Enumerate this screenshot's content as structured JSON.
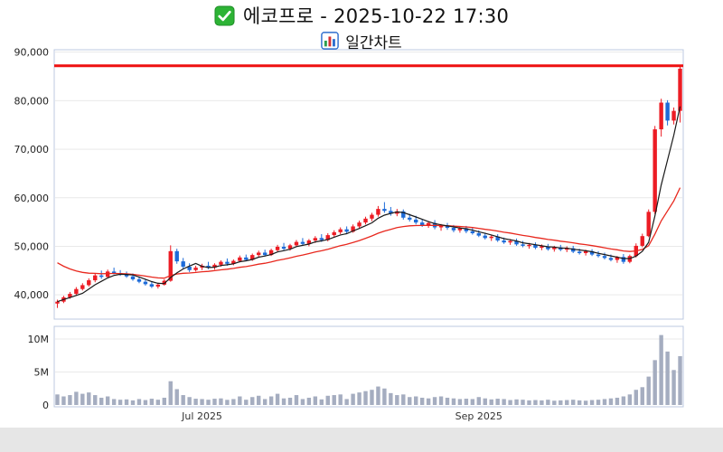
{
  "header": {
    "title": "에코프로 - 2025-10-22 17:30",
    "subtitle": "일간차트",
    "title_icon": "green-checkbox",
    "subtitle_icon": "bar-chart"
  },
  "chart_data": {
    "type": "candlestick",
    "title": "에코프로 - 2025-10-22 17:30",
    "subtitle": "일간차트",
    "symbol": "에코프로",
    "timestamp": "2025-10-22 17:30",
    "y_axis": {
      "min": 35000,
      "max": 90500,
      "tick_values": [
        40000,
        50000,
        60000,
        70000,
        80000,
        90000
      ],
      "tick_labels": [
        "40,000",
        "50,000",
        "60,000",
        "70,000",
        "80,000",
        "90,000"
      ]
    },
    "volume_axis": {
      "tick_values": [
        0,
        5000000,
        10000000
      ],
      "tick_labels": [
        "0",
        "5M",
        "10M"
      ]
    },
    "x_ticks": [
      {
        "label": "Jul 2025",
        "index": 23
      },
      {
        "label": "Sep 2025",
        "index": 67
      }
    ],
    "reference_line": {
      "value": 87200,
      "color": "#ee1111"
    },
    "moving_averages": {
      "fast_window": 5,
      "slow_alpha": 0.1,
      "slow_seed": 47500
    },
    "colors": {
      "up": "#ec1c24",
      "down": "#1d6bd8",
      "ma_fast": "#1a1a1a",
      "ma_slow": "#e8281e",
      "volume": "#a5adc0",
      "grid": "#e9e9e9",
      "panel_border": "#bcc9e0",
      "axis_text": "#222222",
      "x_label_text": "#333333"
    },
    "candle_format": [
      "open",
      "high",
      "low",
      "close",
      "volume"
    ],
    "candles": [
      [
        38200,
        39000,
        37300,
        38600,
        1600000
      ],
      [
        38600,
        39800,
        38300,
        39500,
        1300000
      ],
      [
        39500,
        40600,
        39200,
        40200,
        1500000
      ],
      [
        40200,
        41600,
        39900,
        41200,
        2000000
      ],
      [
        41200,
        42400,
        40900,
        42000,
        1700000
      ],
      [
        42000,
        43400,
        41700,
        43000,
        1900000
      ],
      [
        43000,
        44400,
        42600,
        44000,
        1500000
      ],
      [
        44000,
        45000,
        43300,
        43700,
        1100000
      ],
      [
        43700,
        45200,
        43500,
        44800,
        1300000
      ],
      [
        44800,
        45600,
        44200,
        44500,
        900000
      ],
      [
        44500,
        45100,
        43900,
        44200,
        800000
      ],
      [
        44200,
        44800,
        43500,
        43800,
        850000
      ],
      [
        43800,
        44400,
        42900,
        43200,
        700000
      ],
      [
        43200,
        43800,
        42400,
        42700,
        900000
      ],
      [
        42700,
        43300,
        41900,
        42200,
        750000
      ],
      [
        42200,
        42800,
        41400,
        41700,
        950000
      ],
      [
        41700,
        42500,
        41300,
        42100,
        800000
      ],
      [
        42100,
        43200,
        41900,
        42900,
        1100000
      ],
      [
        42900,
        50200,
        42700,
        49000,
        3600000
      ],
      [
        49000,
        49500,
        46400,
        46900,
        2400000
      ],
      [
        46900,
        47600,
        45400,
        45800,
        1500000
      ],
      [
        45800,
        46500,
        44700,
        45100,
        1200000
      ],
      [
        45100,
        46000,
        44800,
        45600,
        950000
      ],
      [
        45600,
        46400,
        45100,
        46000,
        900000
      ],
      [
        46000,
        46800,
        45300,
        45600,
        800000
      ],
      [
        45600,
        46500,
        45200,
        46200,
        950000
      ],
      [
        46200,
        47100,
        45800,
        46800,
        1000000
      ],
      [
        46800,
        47500,
        46000,
        46400,
        780000
      ],
      [
        46400,
        47300,
        46100,
        47000,
        900000
      ],
      [
        47000,
        48100,
        46700,
        47700,
        1300000
      ],
      [
        47700,
        48300,
        46900,
        47200,
        800000
      ],
      [
        47200,
        48500,
        47000,
        48200,
        1200000
      ],
      [
        48200,
        49100,
        47700,
        48700,
        1400000
      ],
      [
        48700,
        49300,
        47900,
        48200,
        900000
      ],
      [
        48200,
        49500,
        48000,
        49200,
        1300000
      ],
      [
        49200,
        50300,
        48900,
        49900,
        1700000
      ],
      [
        49900,
        50700,
        49200,
        49500,
        1000000
      ],
      [
        49500,
        50500,
        49100,
        50200,
        1100000
      ],
      [
        50200,
        51300,
        49900,
        50900,
        1500000
      ],
      [
        50900,
        51700,
        50100,
        50500,
        900000
      ],
      [
        50500,
        51500,
        50000,
        51200,
        1100000
      ],
      [
        51200,
        52100,
        50700,
        51700,
        1300000
      ],
      [
        51700,
        52500,
        50900,
        51300,
        850000
      ],
      [
        51300,
        52700,
        51000,
        52300,
        1400000
      ],
      [
        52300,
        53300,
        51900,
        52900,
        1500000
      ],
      [
        52900,
        53900,
        52500,
        53500,
        1600000
      ],
      [
        53500,
        54100,
        52600,
        53000,
        900000
      ],
      [
        53000,
        54500,
        52800,
        54100,
        1700000
      ],
      [
        54100,
        55300,
        53700,
        54900,
        1900000
      ],
      [
        54900,
        56100,
        54500,
        55700,
        2100000
      ],
      [
        55700,
        56900,
        55200,
        56500,
        2300000
      ],
      [
        56500,
        58300,
        56100,
        57700,
        2800000
      ],
      [
        57700,
        59100,
        56900,
        57300,
        2500000
      ],
      [
        57300,
        58100,
        56300,
        56700,
        1800000
      ],
      [
        56700,
        57700,
        56200,
        57200,
        1500000
      ],
      [
        57200,
        57600,
        55500,
        55900,
        1600000
      ],
      [
        55900,
        56700,
        55100,
        55500,
        1200000
      ],
      [
        55500,
        56300,
        54500,
        54900,
        1300000
      ],
      [
        54900,
        55600,
        54000,
        54300,
        1100000
      ],
      [
        54300,
        55200,
        53800,
        54800,
        1000000
      ],
      [
        54800,
        55400,
        53500,
        53900,
        1200000
      ],
      [
        53900,
        54600,
        53200,
        54200,
        1300000
      ],
      [
        54200,
        54800,
        53400,
        53800,
        1100000
      ],
      [
        53800,
        54400,
        52900,
        53300,
        1000000
      ],
      [
        53300,
        54100,
        52800,
        53700,
        900000
      ],
      [
        53700,
        54200,
        52700,
        53100,
        950000
      ],
      [
        53100,
        53800,
        52400,
        52700,
        900000
      ],
      [
        52700,
        53300,
        51900,
        52200,
        1200000
      ],
      [
        52200,
        52800,
        51400,
        51700,
        1000000
      ],
      [
        51700,
        52400,
        51100,
        52000,
        850000
      ],
      [
        52000,
        52500,
        50900,
        51200,
        950000
      ],
      [
        51200,
        51800,
        50500,
        50800,
        900000
      ],
      [
        50800,
        51500,
        50300,
        51100,
        750000
      ],
      [
        51100,
        51600,
        50100,
        50400,
        850000
      ],
      [
        50400,
        51100,
        49800,
        50100,
        800000
      ],
      [
        50100,
        50700,
        49500,
        50300,
        700000
      ],
      [
        50300,
        50800,
        49400,
        49700,
        750000
      ],
      [
        49700,
        50400,
        49200,
        50000,
        700000
      ],
      [
        50000,
        50500,
        49100,
        49400,
        800000
      ],
      [
        49400,
        50100,
        48900,
        49800,
        650000
      ],
      [
        49800,
        50300,
        49000,
        49300,
        700000
      ],
      [
        49300,
        50000,
        48800,
        49600,
        750000
      ],
      [
        49600,
        50100,
        48600,
        48900,
        800000
      ],
      [
        48900,
        49500,
        48300,
        48600,
        700000
      ],
      [
        48600,
        49300,
        48100,
        49000,
        650000
      ],
      [
        49000,
        49400,
        48000,
        48300,
        750000
      ],
      [
        48300,
        49000,
        47700,
        48000,
        800000
      ],
      [
        48000,
        48700,
        47300,
        47600,
        900000
      ],
      [
        47600,
        48300,
        46900,
        47200,
        1000000
      ],
      [
        47200,
        48000,
        46600,
        47800,
        1100000
      ],
      [
        47800,
        48400,
        46400,
        46800,
        1300000
      ],
      [
        46800,
        48300,
        46500,
        48000,
        1600000
      ],
      [
        48000,
        50600,
        47700,
        50100,
        2300000
      ],
      [
        50100,
        52600,
        49800,
        52100,
        2700000
      ],
      [
        52100,
        57600,
        51900,
        57100,
        4300000
      ],
      [
        57100,
        74800,
        56600,
        74100,
        6800000
      ],
      [
        74100,
        80400,
        72600,
        79600,
        10600000
      ],
      [
        79600,
        80100,
        74900,
        75900,
        8100000
      ],
      [
        75900,
        78600,
        75100,
        77900,
        5300000
      ],
      [
        77900,
        87200,
        75500,
        86600,
        7400000
      ]
    ]
  }
}
